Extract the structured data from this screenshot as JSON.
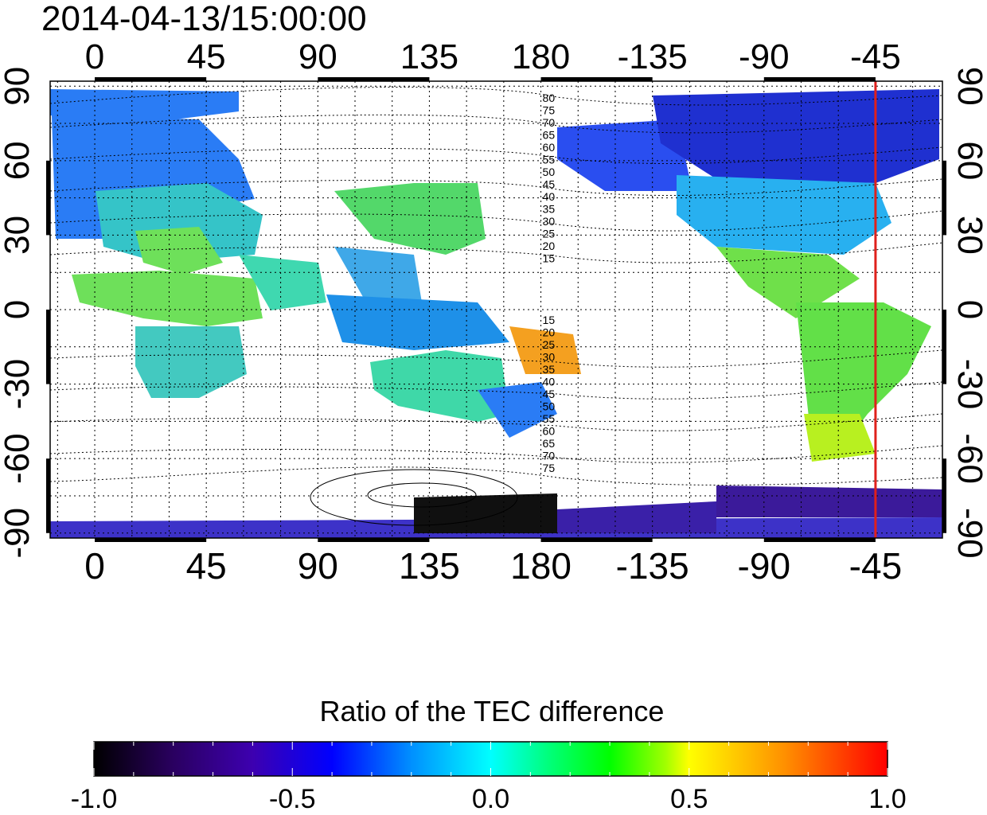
{
  "title": "2014-04-13/15:00:00",
  "map": {
    "lon_ticks_top": [
      "0",
      "45",
      "90",
      "135",
      "180",
      "-135",
      "-90",
      "-45"
    ],
    "lon_ticks_bottom": [
      "0",
      "45",
      "90",
      "135",
      "180",
      "-135",
      "-90",
      "-45"
    ],
    "lat_ticks_left": [
      "90",
      "60",
      "30",
      "0",
      "-30",
      "-60",
      "-90"
    ],
    "lat_ticks_right": [
      "90",
      "60",
      "30",
      "0",
      "-30",
      "-60",
      "-90"
    ],
    "lon_tick_values": [
      0,
      45,
      90,
      135,
      180,
      225,
      270,
      315
    ],
    "lat_tick_values": [
      90,
      60,
      30,
      0,
      -30,
      -60,
      -90
    ],
    "lon_range": [
      -18,
      342
    ],
    "lat_range": [
      -92,
      92
    ],
    "contour_labels_north": [
      "80",
      "75",
      "70",
      "65",
      "60",
      "55",
      "50",
      "45",
      "40",
      "35",
      "30",
      "25",
      "20",
      "15"
    ],
    "contour_labels_south": [
      "15",
      "20",
      "25",
      "30",
      "35",
      "40",
      "45",
      "50",
      "55",
      "60",
      "65",
      "70",
      "75"
    ],
    "highlight_meridian_lon": 315,
    "highlight_color": "#e0201c",
    "grid": "dotted"
  },
  "colorbar": {
    "title": "Ratio of the TEC difference",
    "tick_labels": [
      "-1.0",
      "-0.5",
      "0.0",
      "0.5",
      "1.0"
    ],
    "min": -1.0,
    "max": 1.0,
    "colors": [
      "#000000",
      "#2a0060",
      "#3d00b0",
      "#0000ff",
      "#0090ff",
      "#00ffff",
      "#00ff80",
      "#00ff00",
      "#a0ff00",
      "#ffff00",
      "#ff9000",
      "#ff0000"
    ]
  }
}
